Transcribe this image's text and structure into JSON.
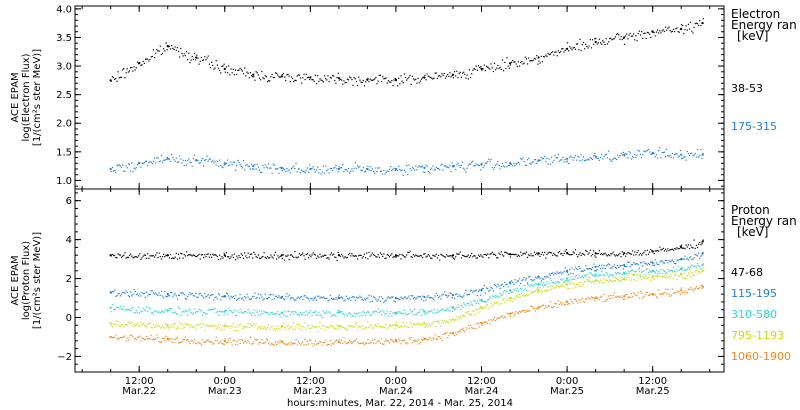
{
  "chart_data": [
    {
      "type": "scatter",
      "panel": "electron",
      "ylabel_lines": [
        "ACE EPAM",
        "log(Electron Flux)",
        "[1/(cm²s ster MeV)]"
      ],
      "ylim": [
        0.85,
        4.05
      ],
      "yticks": [
        1.0,
        1.5,
        2.0,
        2.5,
        3.0,
        3.5,
        4.0
      ],
      "ytick_labels": [
        "1.0",
        "1.5",
        "2.0",
        "2.5",
        "3.0",
        "3.5",
        "4.0"
      ],
      "legend_title_lines": [
        "Electron",
        "Energy ran",
        "[keV]"
      ],
      "series": [
        {
          "name": "38-53",
          "color": "#000000",
          "x": [
            0,
            4,
            8,
            12,
            16,
            20,
            24,
            28,
            32,
            36,
            40,
            44,
            48,
            52,
            56,
            60,
            64,
            68,
            72,
            76,
            80,
            83
          ],
          "y": [
            2.75,
            3.05,
            3.35,
            3.15,
            2.95,
            2.85,
            2.82,
            2.8,
            2.79,
            2.76,
            2.76,
            2.8,
            2.85,
            2.95,
            3.05,
            3.15,
            3.3,
            3.42,
            3.5,
            3.6,
            3.65,
            3.75
          ]
        },
        {
          "name": "175-315",
          "color": "#1e7fd8",
          "x": [
            0,
            4,
            8,
            12,
            16,
            20,
            24,
            28,
            32,
            36,
            40,
            44,
            48,
            52,
            56,
            60,
            64,
            68,
            72,
            76,
            80,
            83
          ],
          "y": [
            1.2,
            1.3,
            1.38,
            1.35,
            1.3,
            1.25,
            1.22,
            1.2,
            1.2,
            1.2,
            1.2,
            1.22,
            1.25,
            1.28,
            1.3,
            1.35,
            1.38,
            1.42,
            1.45,
            1.48,
            1.45,
            1.45
          ]
        }
      ]
    },
    {
      "type": "scatter",
      "panel": "proton",
      "ylabel_lines": [
        "ACE EPAM",
        "log(Proton Flux)",
        "[1/(cm²s ster MeV)]"
      ],
      "ylim": [
        -2.8,
        6.6
      ],
      "yticks": [
        -2,
        0,
        2,
        4,
        6
      ],
      "ytick_labels": [
        "−2",
        "0",
        "2",
        "4",
        "6"
      ],
      "legend_title_lines": [
        "Proton",
        "Energy ran",
        "[keV]"
      ],
      "series": [
        {
          "name": "47-68",
          "color": "#000000",
          "x": [
            0,
            8,
            16,
            24,
            32,
            40,
            48,
            56,
            60,
            64,
            68,
            72,
            76,
            80,
            83
          ],
          "y": [
            3.2,
            3.2,
            3.2,
            3.2,
            3.2,
            3.2,
            3.2,
            3.25,
            3.3,
            3.3,
            3.3,
            3.3,
            3.4,
            3.6,
            3.9
          ]
        },
        {
          "name": "115-195",
          "color": "#1e7fd8",
          "x": [
            0,
            8,
            16,
            24,
            32,
            40,
            44,
            48,
            52,
            56,
            60,
            64,
            68,
            72,
            76,
            80,
            83
          ],
          "y": [
            1.3,
            1.2,
            1.1,
            1.05,
            1.0,
            1.0,
            1.05,
            1.15,
            1.4,
            1.8,
            2.1,
            2.4,
            2.6,
            2.7,
            2.8,
            3.0,
            3.3
          ]
        },
        {
          "name": "310-580",
          "color": "#2ad6d6",
          "x": [
            0,
            8,
            16,
            24,
            32,
            40,
            44,
            48,
            52,
            56,
            60,
            64,
            68,
            72,
            76,
            80,
            83
          ],
          "y": [
            0.5,
            0.35,
            0.3,
            0.25,
            0.25,
            0.25,
            0.3,
            0.5,
            0.9,
            1.4,
            1.7,
            2.0,
            2.2,
            2.3,
            2.4,
            2.5,
            2.7
          ]
        },
        {
          "name": "795-1193",
          "color": "#c8e000",
          "x": [
            0,
            8,
            16,
            24,
            32,
            40,
            44,
            48,
            52,
            56,
            60,
            64,
            68,
            72,
            76,
            80,
            83
          ],
          "y": [
            -0.3,
            -0.4,
            -0.45,
            -0.45,
            -0.45,
            -0.4,
            -0.3,
            -0.1,
            0.5,
            1.0,
            1.4,
            1.7,
            1.9,
            2.0,
            2.1,
            2.2,
            2.4
          ]
        },
        {
          "name": "1060-1900",
          "color": "#f08a1c",
          "x": [
            0,
            8,
            16,
            24,
            32,
            40,
            44,
            48,
            52,
            56,
            60,
            64,
            68,
            72,
            76,
            80,
            83
          ],
          "y": [
            -1.0,
            -1.1,
            -1.2,
            -1.25,
            -1.25,
            -1.2,
            -1.1,
            -0.8,
            -0.3,
            0.2,
            0.5,
            0.8,
            1.0,
            1.1,
            1.2,
            1.4,
            1.6
          ]
        }
      ]
    }
  ],
  "x_axis": {
    "xlim": [
      -5,
      86
    ],
    "ticks": [
      4,
      16,
      28,
      40,
      52,
      64,
      76
    ],
    "tick_labels": [
      [
        "12:00",
        "Mar.22"
      ],
      [
        "0:00",
        "Mar.23"
      ],
      [
        "12:00",
        "Mar.23"
      ],
      [
        "0:00",
        "Mar.24"
      ],
      [
        "12:00",
        "Mar.24"
      ],
      [
        "0:00",
        "Mar.25"
      ],
      [
        "12:00",
        "Mar.25"
      ]
    ],
    "xlabel": "hours:minutes, Mar. 22, 2014 - Mar. 25, 2014"
  }
}
